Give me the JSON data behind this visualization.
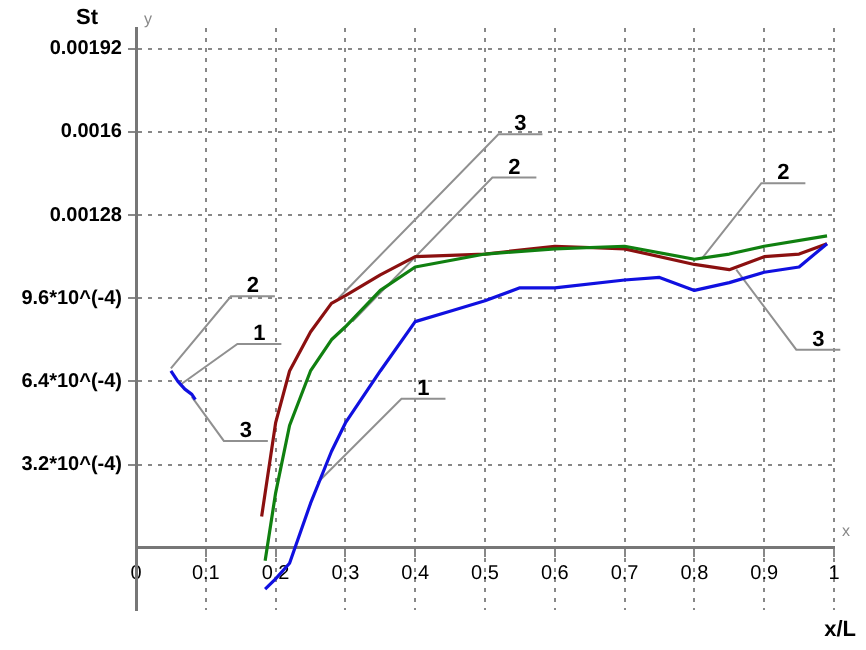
{
  "chart_data": {
    "type": "line",
    "xlabel": "x/L",
    "ylabel": "St",
    "xlim": [
      0,
      1
    ],
    "ylim": [
      -0.00024,
      0.002
    ],
    "xticks": [
      {
        "value": 0,
        "label": "0"
      },
      0.1,
      0.2,
      0.3,
      0.4,
      0.5,
      0.6,
      0.7,
      0.8,
      0.9,
      1
    ],
    "yticks": [
      {
        "value": 0.00032,
        "label": "3.2*10^(-4)"
      },
      {
        "value": 0.00064,
        "label": "6.4*10^(-4)"
      },
      {
        "value": 0.00096,
        "label": "9.6*10^(-4)"
      },
      0.00128,
      0.0016,
      0.00192
    ],
    "grid": true,
    "legend": false,
    "marker": "none",
    "line_style": "solid",
    "series": [
      {
        "color": "#1010e0",
        "x": [
          0.185,
          0.2,
          0.22,
          0.25,
          0.28,
          0.3,
          0.35,
          0.4,
          0.45,
          0.5,
          0.55,
          0.6,
          0.7,
          0.75,
          0.8,
          0.85,
          0.9,
          0.95,
          0.99
        ],
        "values": [
          -0.00016,
          -0.00012,
          -6e-05,
          0.00017,
          0.00037,
          0.00048,
          0.00068,
          0.00087,
          0.00091,
          0.00095,
          0.001,
          0.001,
          0.00103,
          0.00104,
          0.00099,
          0.00102,
          0.00106,
          0.00108,
          0.00117
        ]
      },
      {
        "color": "#108010",
        "x": [
          0.185,
          0.2,
          0.22,
          0.25,
          0.28,
          0.3,
          0.35,
          0.4,
          0.5,
          0.6,
          0.7,
          0.8,
          0.85,
          0.9,
          0.99
        ],
        "values": [
          -5e-05,
          0.00021,
          0.00047,
          0.00068,
          0.0008,
          0.00085,
          0.00099,
          0.00108,
          0.00113,
          0.00115,
          0.00116,
          0.00111,
          0.00113,
          0.00116,
          0.0012
        ]
      },
      {
        "color": "#8b1010",
        "x": [
          0.18,
          0.2,
          0.22,
          0.25,
          0.28,
          0.3,
          0.35,
          0.4,
          0.5,
          0.6,
          0.7,
          0.8,
          0.85,
          0.9,
          0.95,
          0.99
        ],
        "values": [
          0.00012,
          0.00048,
          0.00068,
          0.00083,
          0.00094,
          0.00097,
          0.00105,
          0.00112,
          0.00113,
          0.00116,
          0.00115,
          0.00109,
          0.00107,
          0.00112,
          0.00113,
          0.00117
        ]
      },
      {
        "color": "#1010e0",
        "x": [
          0.05,
          0.06,
          0.07,
          0.08,
          0.085
        ],
        "values": [
          0.00068,
          0.00064,
          0.00061,
          0.00059,
          0.00057
        ]
      }
    ],
    "annotations": [
      "y",
      "x",
      {
        "text": "2",
        "x": 0.05,
        "y": 0.00069
      },
      {
        "text": "1",
        "x": 0.065,
        "y": 0.00063
      },
      {
        "text": "3",
        "x": 0.08,
        "y": 0.00058
      },
      {
        "text": "3",
        "x": 0.29,
        "y": 0.00096
      },
      {
        "text": "2",
        "x": 0.31,
        "y": 0.00087
      },
      {
        "text": "1",
        "x": 0.26,
        "y": 0.00025
      },
      {
        "text": "2",
        "x": 0.81,
        "y": 0.00111
      },
      {
        "text": "3",
        "x": 0.86,
        "y": 0.00107
      }
    ]
  }
}
